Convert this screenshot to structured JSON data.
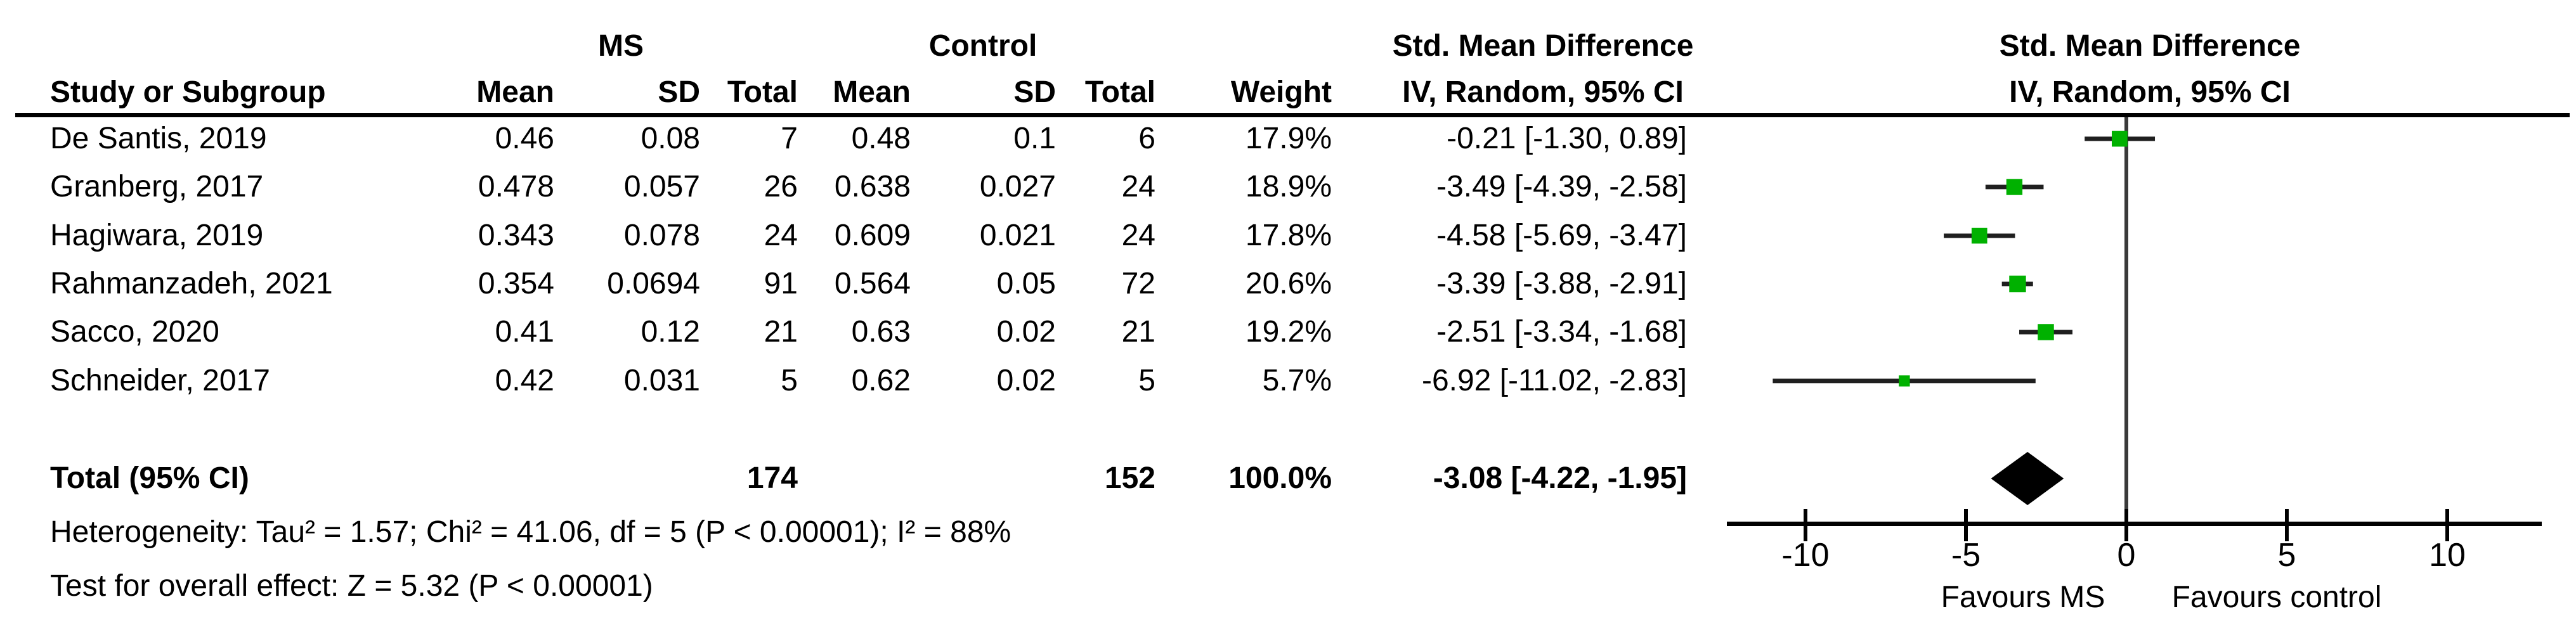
{
  "table": {
    "group_headers": {
      "ms": "MS",
      "control": "Control",
      "smd_table": "Std. Mean Difference",
      "smd_plot": "Std. Mean Difference"
    },
    "column_headers": {
      "study": "Study or Subgroup",
      "ms_mean": "Mean",
      "ms_sd": "SD",
      "ms_total": "Total",
      "c_mean": "Mean",
      "c_sd": "SD",
      "c_total": "Total",
      "weight": "Weight",
      "ci_table": "IV, Random, 95% CI",
      "ci_plot": "IV, Random, 95% CI"
    },
    "rows": [
      {
        "study": "De Santis, 2019",
        "ms_mean": "0.46",
        "ms_sd": "0.08",
        "ms_total": "7",
        "c_mean": "0.48",
        "c_sd": "0.1",
        "c_total": "6",
        "weight": "17.9%",
        "ci": "-0.21 [-1.30, 0.89]"
      },
      {
        "study": "Granberg, 2017",
        "ms_mean": "0.478",
        "ms_sd": "0.057",
        "ms_total": "26",
        "c_mean": "0.638",
        "c_sd": "0.027",
        "c_total": "24",
        "weight": "18.9%",
        "ci": "-3.49 [-4.39, -2.58]"
      },
      {
        "study": "Hagiwara, 2019",
        "ms_mean": "0.343",
        "ms_sd": "0.078",
        "ms_total": "24",
        "c_mean": "0.609",
        "c_sd": "0.021",
        "c_total": "24",
        "weight": "17.8%",
        "ci": "-4.58 [-5.69, -3.47]"
      },
      {
        "study": "Rahmanzadeh, 2021",
        "ms_mean": "0.354",
        "ms_sd": "0.0694",
        "ms_total": "91",
        "c_mean": "0.564",
        "c_sd": "0.05",
        "c_total": "72",
        "weight": "20.6%",
        "ci": "-3.39 [-3.88, -2.91]"
      },
      {
        "study": "Sacco, 2020",
        "ms_mean": "0.41",
        "ms_sd": "0.12",
        "ms_total": "21",
        "c_mean": "0.63",
        "c_sd": "0.02",
        "c_total": "21",
        "weight": "19.2%",
        "ci": "-2.51 [-3.34, -1.68]"
      },
      {
        "study": "Schneider, 2017",
        "ms_mean": "0.42",
        "ms_sd": "0.031",
        "ms_total": "5",
        "c_mean": "0.62",
        "c_sd": "0.02",
        "c_total": "5",
        "weight": "5.7%",
        "ci": "-6.92 [-11.02, -2.83]"
      }
    ],
    "total_row": {
      "label": "Total (95% CI)",
      "ms_total": "174",
      "c_total": "152",
      "weight": "100.0%",
      "ci": "-3.08 [-4.22, -1.95]"
    },
    "footer": {
      "heterogeneity": "Heterogeneity: Tau² = 1.57; Chi² = 41.06, df = 5 (P < 0.00001); I² = 88%",
      "overall_effect": "Test for overall effect: Z = 5.32 (P < 0.00001)"
    }
  },
  "chart_data": {
    "type": "forest",
    "effect_measure": "Std. Mean Difference",
    "model": "IV, Random, 95% CI",
    "studies": [
      {
        "name": "De Santis, 2019",
        "est": -0.21,
        "lo": -1.3,
        "hi": 0.89,
        "weight": 17.9
      },
      {
        "name": "Granberg, 2017",
        "est": -3.49,
        "lo": -4.39,
        "hi": -2.58,
        "weight": 18.9
      },
      {
        "name": "Hagiwara, 2019",
        "est": -4.58,
        "lo": -5.69,
        "hi": -3.47,
        "weight": 17.8
      },
      {
        "name": "Rahmanzadeh, 2021",
        "est": -3.39,
        "lo": -3.88,
        "hi": -2.91,
        "weight": 20.6
      },
      {
        "name": "Sacco, 2020",
        "est": -2.51,
        "lo": -3.34,
        "hi": -1.68,
        "weight": 19.2
      },
      {
        "name": "Schneider, 2017",
        "est": -6.92,
        "lo": -11.02,
        "hi": -2.83,
        "weight": 5.7
      }
    ],
    "overall": {
      "est": -3.08,
      "lo": -4.22,
      "hi": -1.95
    },
    "axis": {
      "ticks": [
        -10,
        -5,
        0,
        5,
        10
      ],
      "tick_labels": [
        "-10",
        "-5",
        "0",
        "5",
        "10"
      ],
      "xlim": [
        -12.4,
        12.9
      ]
    },
    "favours_left": "Favours MS",
    "favours_right": "Favours control",
    "marker_color": "#00b100",
    "line_color": "#1f1f1f",
    "zero_line_color": "#3a3a3a",
    "diamond_color": "#000000"
  }
}
